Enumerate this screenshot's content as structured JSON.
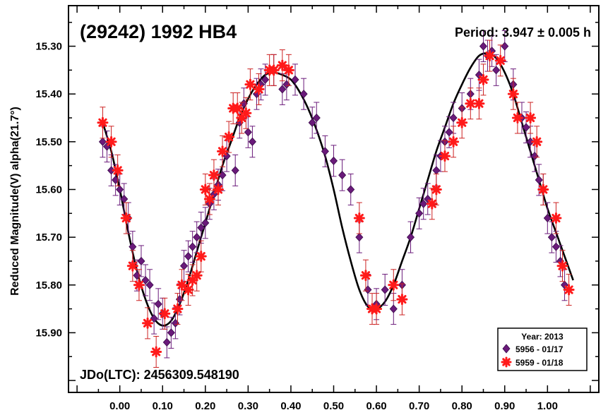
{
  "chart_data": {
    "type": "scatter",
    "title": "(29242) 1992 HB4",
    "period_label": "Period: 3.947 ± 0.005 h",
    "jd_label": "JDo(LTC): 2456309.548190",
    "ylabel": "Reduced Magnitude(V) alpha(21.7°)",
    "xlim": [
      -0.12,
      1.12
    ],
    "ylim": [
      15.215,
      16.025
    ],
    "y_inverted": true,
    "xticks": [
      0.0,
      0.1,
      0.2,
      0.3,
      0.4,
      0.5,
      0.6,
      0.7,
      0.8,
      0.9,
      1.0
    ],
    "xtick_labels": [
      "0.00",
      "0.10",
      "0.20",
      "0.30",
      "0.40",
      "0.50",
      "0.60",
      "0.70",
      "0.80",
      "0.90",
      "1.00"
    ],
    "yticks": [
      15.3,
      15.4,
      15.5,
      15.6,
      15.7,
      15.8,
      15.9
    ],
    "ytick_labels": [
      "15.30",
      "15.40",
      "15.50",
      "15.60",
      "15.70",
      "15.80",
      "15.90"
    ],
    "legend": {
      "title": "Year: 2013",
      "placement": "bottom-right",
      "entries": [
        "5956 - 01/17",
        "5959 - 01/18"
      ]
    },
    "fit_curve": {
      "x": [
        -0.04,
        -0.02,
        0.0,
        0.02,
        0.04,
        0.06,
        0.08,
        0.1,
        0.12,
        0.14,
        0.16,
        0.18,
        0.2,
        0.22,
        0.24,
        0.26,
        0.28,
        0.3,
        0.32,
        0.34,
        0.36,
        0.38,
        0.4,
        0.42,
        0.44,
        0.46,
        0.48,
        0.5,
        0.52,
        0.54,
        0.56,
        0.58,
        0.6,
        0.62,
        0.64,
        0.66,
        0.68,
        0.7,
        0.72,
        0.74,
        0.76,
        0.78,
        0.8,
        0.82,
        0.84,
        0.86,
        0.88,
        0.9,
        0.92,
        0.94,
        0.96,
        0.98,
        1.0,
        1.02,
        1.04,
        1.06
      ],
      "y": [
        15.46,
        15.52,
        15.6,
        15.69,
        15.77,
        15.83,
        15.87,
        15.885,
        15.875,
        15.84,
        15.79,
        15.73,
        15.67,
        15.61,
        15.55,
        15.5,
        15.45,
        15.41,
        15.38,
        15.36,
        15.355,
        15.36,
        15.37,
        15.395,
        15.43,
        15.475,
        15.53,
        15.6,
        15.68,
        15.75,
        15.81,
        15.845,
        15.85,
        15.835,
        15.8,
        15.75,
        15.7,
        15.64,
        15.58,
        15.52,
        15.47,
        15.42,
        15.38,
        15.345,
        15.32,
        15.315,
        15.325,
        15.355,
        15.4,
        15.46,
        15.52,
        15.58,
        15.64,
        15.69,
        15.74,
        15.79
      ]
    },
    "series": [
      {
        "name": "5956 - 01/17",
        "marker": "diamond",
        "color": "#6a1a7a",
        "x": [
          -0.04,
          -0.03,
          -0.02,
          -0.01,
          0.0,
          0.01,
          0.02,
          0.03,
          0.04,
          0.05,
          0.06,
          0.07,
          0.08,
          0.09,
          0.1,
          0.11,
          0.12,
          0.13,
          0.14,
          0.15,
          0.16,
          0.17,
          0.18,
          0.19,
          0.2,
          0.21,
          0.22,
          0.23,
          0.24,
          0.25,
          0.27,
          0.28,
          0.29,
          0.3,
          0.31,
          0.32,
          0.33,
          0.34,
          0.36,
          0.38,
          0.39,
          0.41,
          0.43,
          0.45,
          0.46,
          0.48,
          0.5,
          0.52,
          0.54,
          0.56,
          0.58,
          0.6,
          0.62,
          0.64,
          0.66,
          0.68,
          0.7,
          0.71,
          0.72,
          0.74,
          0.75,
          0.76,
          0.77,
          0.78,
          0.8,
          0.82,
          0.84,
          0.85,
          0.86,
          0.87,
          0.88,
          0.9,
          0.92,
          0.94,
          0.95,
          0.96,
          0.97,
          0.98,
          0.99,
          1.0,
          1.01,
          1.02,
          1.03,
          1.04
        ],
        "y": [
          15.5,
          15.51,
          15.56,
          15.58,
          15.6,
          15.62,
          15.66,
          15.72,
          15.78,
          15.75,
          15.79,
          15.8,
          15.87,
          15.84,
          15.86,
          15.92,
          15.9,
          15.88,
          15.83,
          15.76,
          15.74,
          15.72,
          15.7,
          15.68,
          15.67,
          15.63,
          15.61,
          15.59,
          15.57,
          15.53,
          15.56,
          15.46,
          15.42,
          15.48,
          15.5,
          15.4,
          15.38,
          15.37,
          15.35,
          15.39,
          15.38,
          15.37,
          15.4,
          15.46,
          15.45,
          15.52,
          15.54,
          15.57,
          15.6,
          15.7,
          15.81,
          15.84,
          15.81,
          15.85,
          15.8,
          15.7,
          15.65,
          15.63,
          15.62,
          15.56,
          15.53,
          15.5,
          15.48,
          15.45,
          15.43,
          15.4,
          15.36,
          15.3,
          15.32,
          15.31,
          15.35,
          15.3,
          15.38,
          15.45,
          15.47,
          15.5,
          15.53,
          15.58,
          15.6,
          15.66,
          15.7,
          15.72,
          15.75,
          15.8
        ]
      },
      {
        "name": "5959 - 01/18",
        "marker": "star",
        "color": "#ff1a1a",
        "x": [
          -0.04,
          -0.02,
          -0.005,
          0.015,
          0.03,
          0.045,
          0.065,
          0.085,
          0.105,
          0.135,
          0.145,
          0.16,
          0.17,
          0.18,
          0.19,
          0.2,
          0.21,
          0.22,
          0.23,
          0.24,
          0.255,
          0.265,
          0.275,
          0.285,
          0.295,
          0.305,
          0.325,
          0.35,
          0.36,
          0.38,
          0.395,
          0.56,
          0.575,
          0.59,
          0.6,
          0.64,
          0.66,
          0.73,
          0.74,
          0.76,
          0.78,
          0.8,
          0.82,
          0.84,
          0.85,
          0.865,
          0.89,
          0.92,
          0.93,
          0.96,
          0.975,
          0.99,
          1.02,
          1.035,
          1.05
        ],
        "y": [
          15.46,
          15.5,
          15.56,
          15.66,
          15.76,
          15.8,
          15.88,
          15.94,
          15.86,
          15.85,
          15.8,
          15.81,
          15.79,
          15.78,
          15.74,
          15.6,
          15.62,
          15.57,
          15.6,
          15.52,
          15.49,
          15.43,
          15.43,
          15.45,
          15.44,
          15.38,
          15.39,
          15.35,
          15.35,
          15.34,
          15.35,
          15.66,
          15.78,
          15.85,
          15.85,
          15.8,
          15.83,
          15.63,
          15.6,
          15.53,
          15.5,
          15.46,
          15.42,
          15.42,
          15.37,
          15.32,
          15.33,
          15.4,
          15.45,
          15.45,
          15.5,
          15.6,
          15.66,
          15.76,
          15.81
        ]
      }
    ]
  }
}
